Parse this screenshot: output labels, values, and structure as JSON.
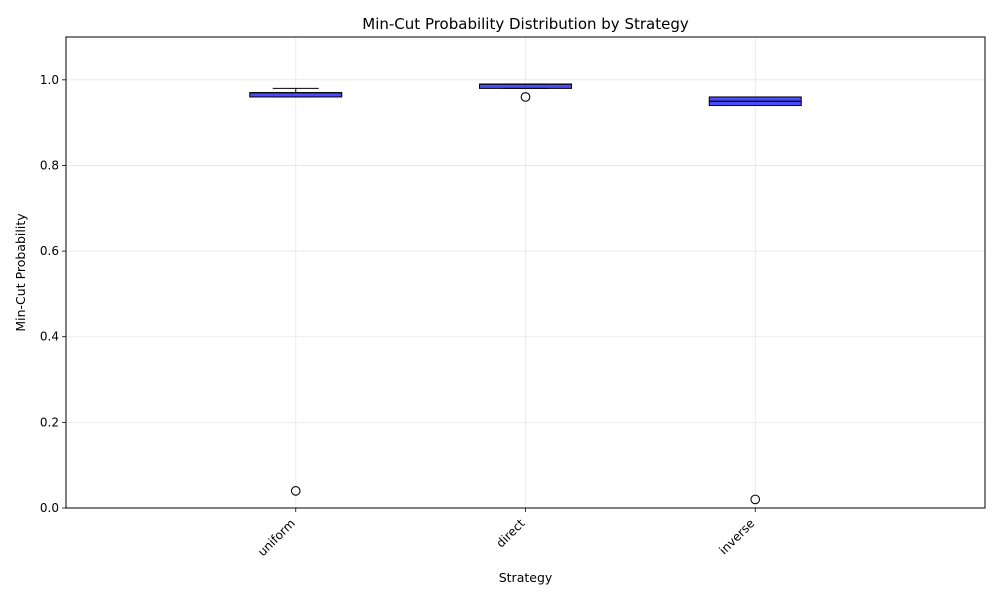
{
  "chart_data": {
    "type": "box",
    "title": "Min-Cut Probability Distribution by Strategy",
    "xlabel": "Strategy",
    "ylabel": "Min-Cut Probability",
    "ylim": [
      0,
      1.1
    ],
    "yticks": [
      0.0,
      0.2,
      0.4,
      0.6,
      0.8,
      1.0
    ],
    "ytick_labels": [
      "0.0",
      "0.2",
      "0.4",
      "0.6",
      "0.8",
      "1.0"
    ],
    "grid": true,
    "box_color": "#0000ff",
    "box_alpha": 0.7,
    "categories": [
      "uniform",
      "direct",
      "inverse"
    ],
    "boxes": [
      {
        "category": "uniform",
        "whisker_low": 0.96,
        "q1": 0.96,
        "median": 0.97,
        "q3": 0.97,
        "whisker_high": 0.98,
        "outliers": [
          0.04
        ]
      },
      {
        "category": "direct",
        "whisker_low": 0.98,
        "q1": 0.98,
        "median": 0.99,
        "q3": 0.99,
        "whisker_high": 0.99,
        "outliers": [
          0.96
        ]
      },
      {
        "category": "inverse",
        "whisker_low": 0.94,
        "q1": 0.94,
        "median": 0.95,
        "q3": 0.96,
        "whisker_high": 0.96,
        "outliers": [
          0.02
        ]
      }
    ]
  }
}
